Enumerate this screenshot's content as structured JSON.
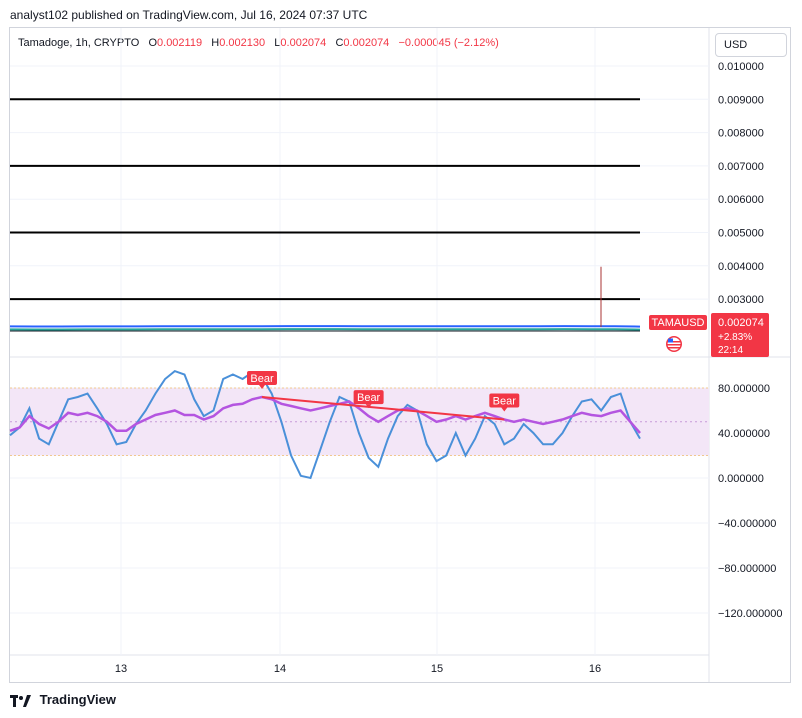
{
  "header": {
    "published": "analyst102 published on TradingView.com, Jul 16, 2024 07:37 UTC"
  },
  "legend": {
    "symbol": "Tamadoge, 1h, CRYPTO",
    "open_label": "O",
    "open": "0.002119",
    "high_label": "H",
    "high": "0.002130",
    "low_label": "L",
    "low": "0.002074",
    "close_label": "C",
    "close": "0.002074",
    "change": "−0.000045 (−2.12%)"
  },
  "currency": "USD",
  "price_axis": {
    "ticks": [
      "0.010000",
      "0.009000",
      "0.008000",
      "0.007000",
      "0.006000",
      "0.005000",
      "0.004000",
      "0.003000"
    ]
  },
  "price_tag": {
    "symbol": "TAMAUSD",
    "price": "0.002074",
    "change": "+2.83%",
    "countdown": "22:14"
  },
  "osc_axis": {
    "ticks": [
      "80.000000",
      "40.000000",
      "0.000000",
      "−40.000000",
      "−80.000000",
      "−120.000000"
    ]
  },
  "time_axis": {
    "ticks": [
      "13",
      "14",
      "15",
      "16"
    ]
  },
  "signals": [
    "Bear",
    "Bear",
    "Bear"
  ],
  "colors": {
    "bear": "#f23645",
    "stoch_k": "#4a90d9",
    "rsi": "#b455e0",
    "band_fill": "#f3e6f7",
    "horizontal_lines": "#000000"
  },
  "footer": {
    "brand": "TradingView"
  },
  "chart_data": [
    {
      "type": "line",
      "title": "",
      "ylim": [
        0.002,
        0.0105
      ],
      "horizontal_levels": [
        0.009,
        0.007,
        0.005,
        0.003
      ],
      "series": [
        {
          "values": [
            0.00209,
            0.00208,
            0.00208,
            0.00209,
            0.00209,
            0.0021,
            0.00211,
            0.00212,
            0.00213,
            0.00213,
            0.00213,
            0.00214,
            0.00214,
            0.00214,
            0.00213,
            0.00213,
            0.00213,
            0.00212,
            0.00212,
            0.00213,
            0.00213,
            0.00213,
            0.00214,
            0.00213,
            0.00212,
            0.00207
          ]
        }
      ],
      "spike": {
        "high": 0.00397
      }
    },
    {
      "type": "line",
      "title": "",
      "ylim": [
        -140,
        100
      ],
      "band": [
        20,
        80
      ],
      "series": [
        {
          "values": [
            38,
            45,
            62,
            35,
            30,
            50,
            70,
            72,
            75,
            62,
            48,
            30,
            32,
            48,
            60,
            75,
            88,
            95,
            92,
            70,
            55,
            60,
            88,
            92,
            88,
            94,
            90,
            75,
            50,
            20,
            2,
            0,
            25,
            50,
            72,
            68,
            40,
            18,
            10,
            35,
            55,
            65,
            60,
            30,
            15,
            20,
            40,
            20,
            35,
            55,
            48,
            30,
            35,
            48,
            40,
            30,
            30,
            40,
            55,
            68,
            70,
            60,
            72,
            75,
            50,
            35
          ]
        },
        {
          "values": [
            42,
            45,
            55,
            48,
            44,
            50,
            58,
            56,
            58,
            55,
            50,
            42,
            42,
            48,
            52,
            56,
            58,
            60,
            56,
            56,
            52,
            55,
            62,
            65,
            66,
            70,
            72,
            70,
            66,
            64,
            62,
            60,
            62,
            64,
            66,
            68,
            62,
            55,
            50,
            55,
            60,
            62,
            60,
            55,
            50,
            52,
            55,
            52,
            55,
            58,
            55,
            52,
            50,
            52,
            50,
            48,
            50,
            52,
            55,
            58,
            56,
            55,
            58,
            60,
            50,
            40
          ]
        }
      ],
      "signals": [
        {
          "label": "Bear",
          "x_index": 26
        },
        {
          "label": "Bear",
          "x_index": 37
        },
        {
          "label": "Bear",
          "x_index": 51
        }
      ]
    }
  ]
}
